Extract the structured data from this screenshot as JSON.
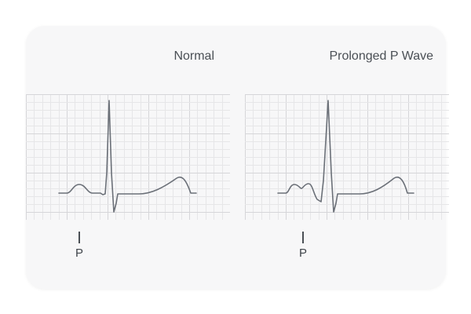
{
  "panels": [
    {
      "title": "Normal",
      "marker_label": "P"
    },
    {
      "title": "Prolonged P Wave",
      "marker_label": "P"
    }
  ],
  "colors": {
    "trace": "#6b7078",
    "grid_minor": "#e6e6e8",
    "grid_major": "#d6d6d9",
    "background": "#f7f7f8"
  }
}
